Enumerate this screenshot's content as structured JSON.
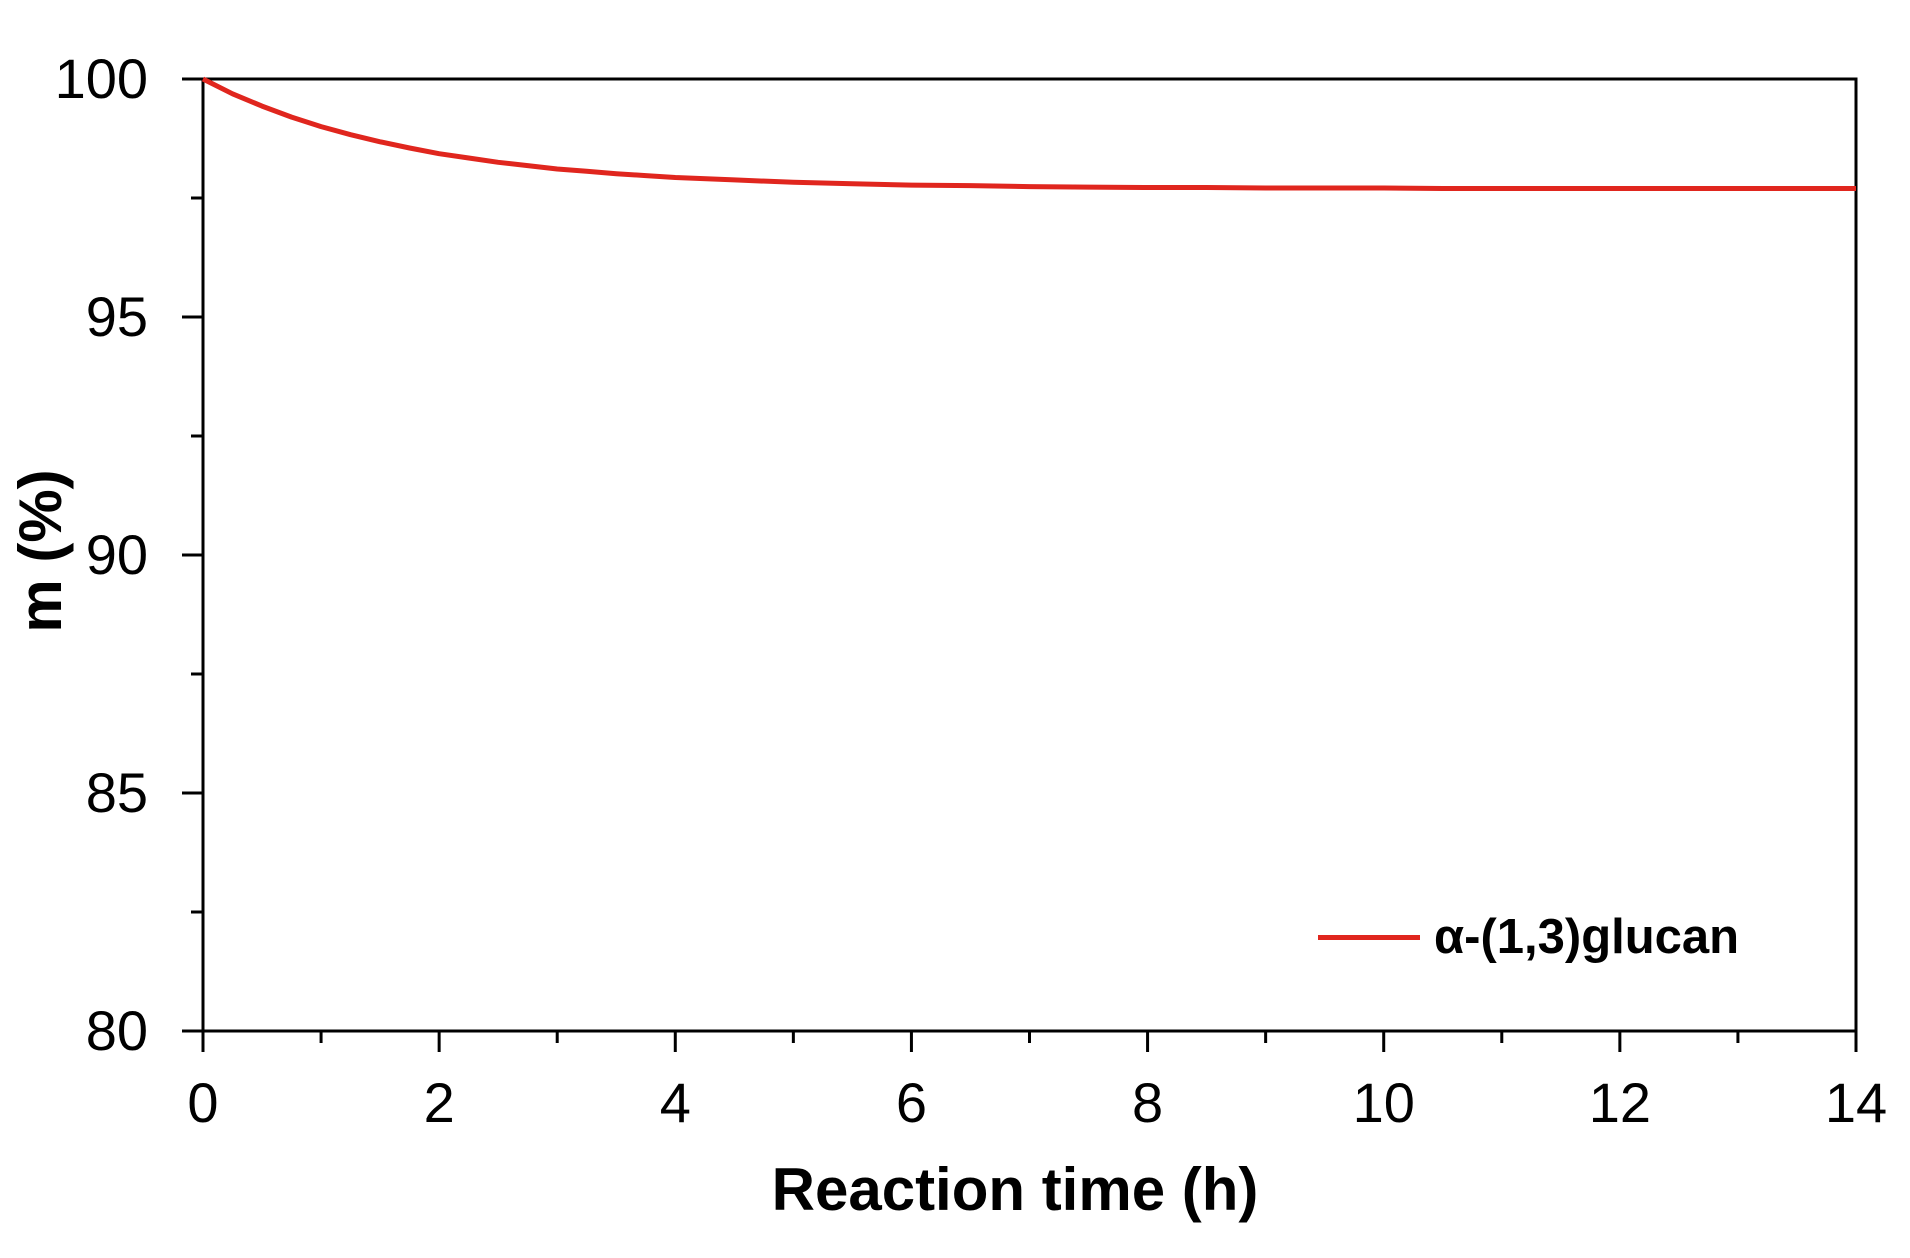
{
  "figure": {
    "background": "#ffffff",
    "axis_color": "#000000",
    "text_color": "#000000"
  },
  "chart_data": {
    "type": "line",
    "title": "",
    "xlabel": "Reaction time (h)",
    "ylabel": "m (%)",
    "xlim": [
      0,
      14
    ],
    "ylim": [
      80,
      100
    ],
    "x_ticks_major": [
      0,
      2,
      4,
      6,
      8,
      10,
      12,
      14
    ],
    "x_ticks_minor": [
      1,
      3,
      5,
      7,
      9,
      11,
      13
    ],
    "y_ticks_major": [
      80,
      85,
      90,
      95,
      100
    ],
    "y_ticks_minor": [
      82.5,
      87.5,
      92.5,
      97.5
    ],
    "grid": false,
    "frame": "box",
    "legend": {
      "position": "inside-bottom-right",
      "entries": [
        {
          "label": "α-(1,3)glucan",
          "color": "#e0261e",
          "marker": "line"
        }
      ]
    },
    "series": [
      {
        "name": "α-(1,3)glucan",
        "color": "#e0261e",
        "line_width": 5,
        "points": [
          [
            0,
            100.0
          ],
          [
            0.25,
            99.69
          ],
          [
            0.5,
            99.43
          ],
          [
            0.75,
            99.2
          ],
          [
            1,
            99.0
          ],
          [
            1.25,
            98.83
          ],
          [
            1.5,
            98.68
          ],
          [
            1.75,
            98.55
          ],
          [
            2,
            98.43
          ],
          [
            2.25,
            98.34
          ],
          [
            2.5,
            98.25
          ],
          [
            2.75,
            98.18
          ],
          [
            3,
            98.11
          ],
          [
            3.25,
            98.06
          ],
          [
            3.5,
            98.01
          ],
          [
            3.75,
            97.97
          ],
          [
            4,
            97.93
          ],
          [
            4.5,
            97.88
          ],
          [
            5,
            97.83
          ],
          [
            5.5,
            97.8
          ],
          [
            6,
            97.77
          ],
          [
            6.5,
            97.76
          ],
          [
            7,
            97.74
          ],
          [
            7.5,
            97.73
          ],
          [
            8,
            97.72
          ],
          [
            8.5,
            97.72
          ],
          [
            9,
            97.71
          ],
          [
            9.5,
            97.71
          ],
          [
            10,
            97.71
          ],
          [
            10.5,
            97.7
          ],
          [
            11,
            97.7
          ],
          [
            11.5,
            97.7
          ],
          [
            12,
            97.7
          ],
          [
            12.5,
            97.7
          ],
          [
            13,
            97.7
          ],
          [
            13.5,
            97.7
          ],
          [
            14,
            97.7
          ]
        ]
      }
    ]
  }
}
